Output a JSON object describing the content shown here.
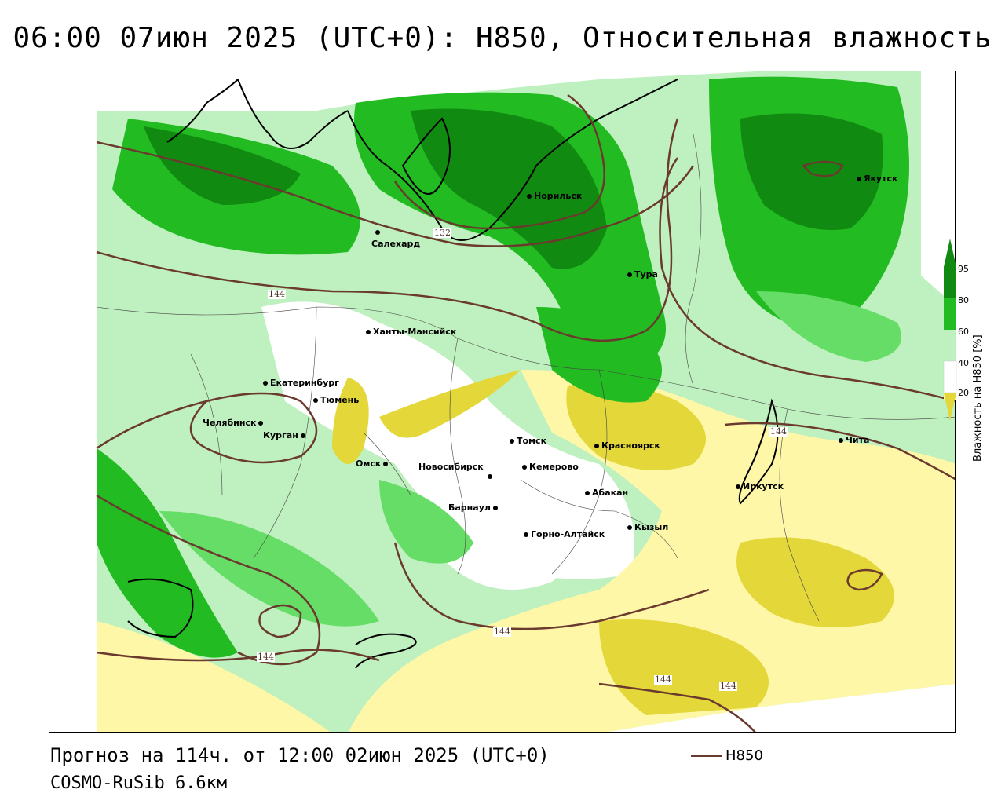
{
  "title": "06:00 07июн 2025 (UTC+0): H850, Относительная влажность",
  "footer": {
    "forecast": "Прогноз на 114ч. от 12:00 02июн 2025 (UTC+0)",
    "model": "COSMO-RuSib 6.6км",
    "line_legend": "H850"
  },
  "legend": {
    "title": "Влажность на H850 [%]",
    "ticks": [
      "95",
      "80",
      "60",
      "40",
      "20"
    ],
    "colors": {
      "very_wet": "#118a11",
      "wet": "#22bb22",
      "moist": "#66dd66",
      "light": "#bff0bf",
      "neutral": "#ffffff",
      "dry": "#fff7a8",
      "very_dry": "#e3d73a"
    }
  },
  "contour_labels": [
    "132",
    "144",
    "144",
    "144",
    "144",
    "144",
    "144"
  ],
  "cities": [
    {
      "name": "Якутск"
    },
    {
      "name": "Норильск"
    },
    {
      "name": "Салехард"
    },
    {
      "name": "Тура"
    },
    {
      "name": "Ханты-Мансийск"
    },
    {
      "name": "Екатеринбург"
    },
    {
      "name": "Тюмень"
    },
    {
      "name": "Челябинск"
    },
    {
      "name": "Курган"
    },
    {
      "name": "Омск"
    },
    {
      "name": "Томск"
    },
    {
      "name": "Красноярск"
    },
    {
      "name": "Новосибирск"
    },
    {
      "name": "Кемерово"
    },
    {
      "name": "Абакан"
    },
    {
      "name": "Барнаул"
    },
    {
      "name": "Горно-Алтайск"
    },
    {
      "name": "Кызыл"
    },
    {
      "name": "Иркутск"
    },
    {
      "name": "Чита"
    }
  ]
}
